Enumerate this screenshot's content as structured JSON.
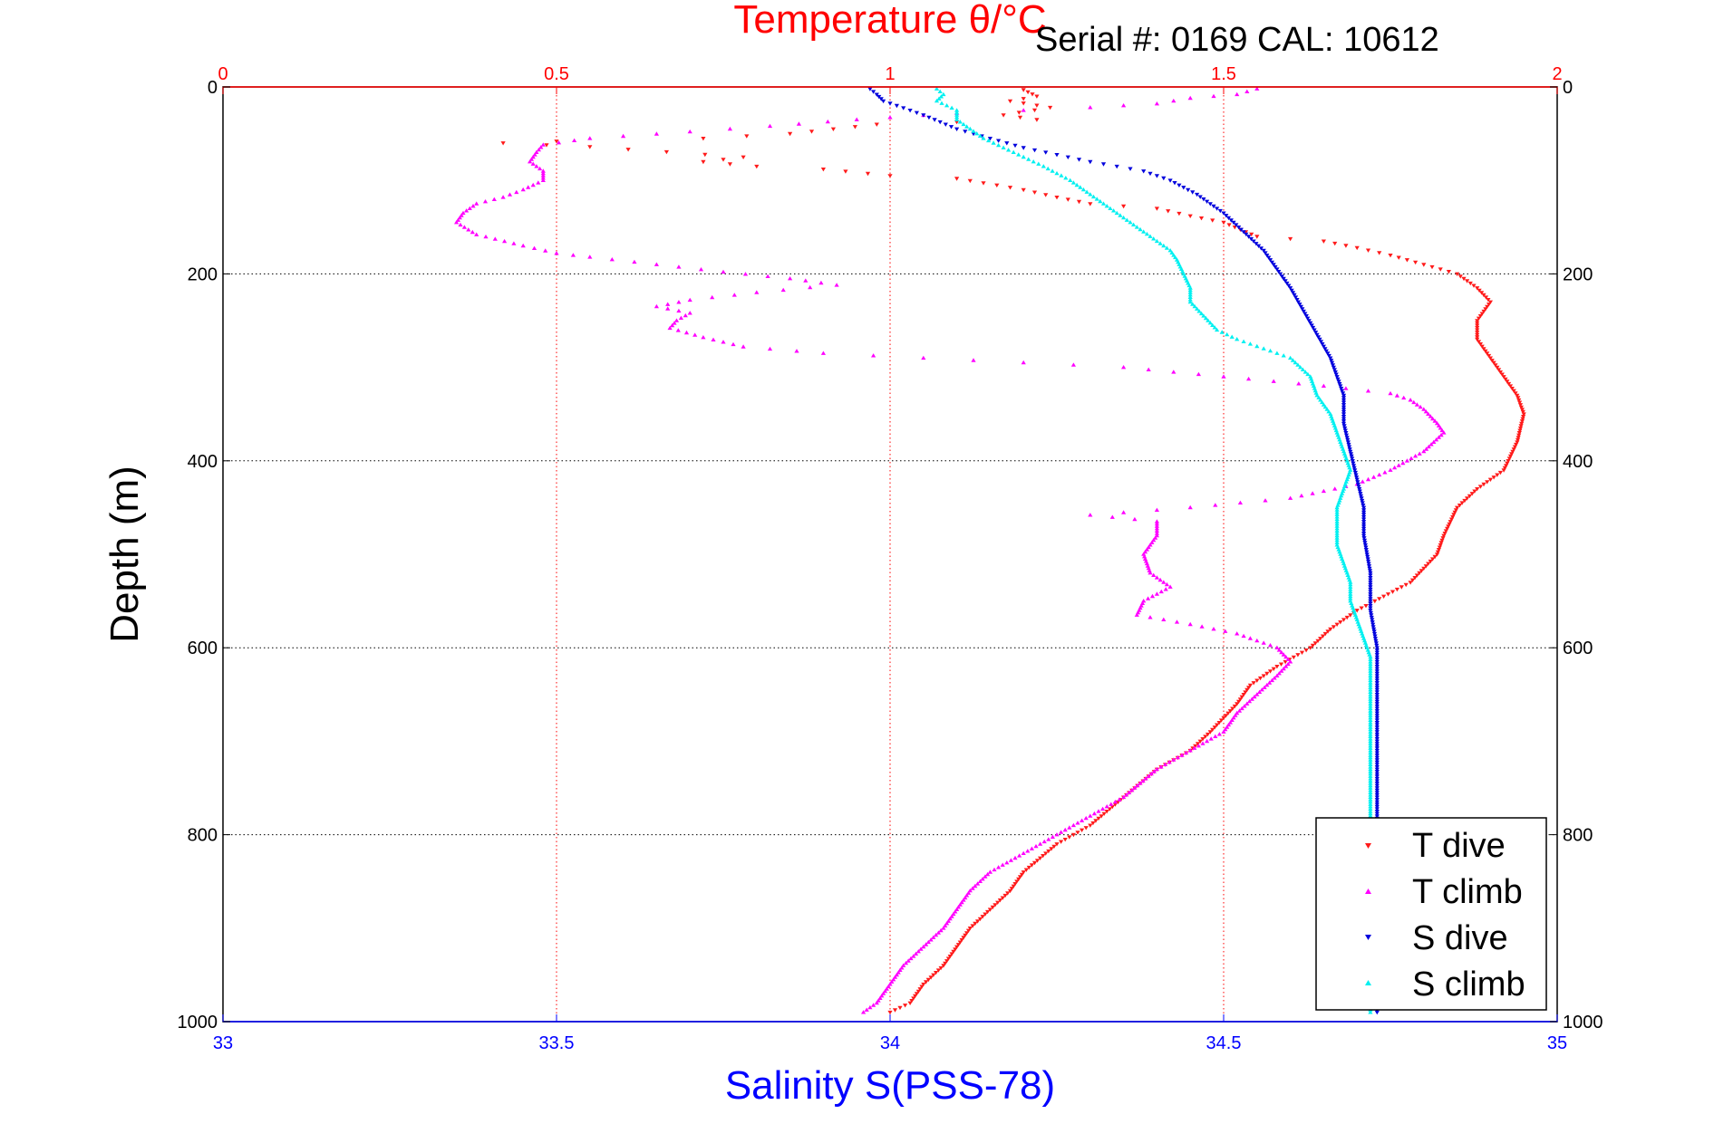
{
  "colors": {
    "temperature": "#ff0000",
    "salinity": "#0000ff",
    "t_dive": "#ff1a1a",
    "t_climb": "#ff00ff",
    "s_dive": "#0000dd",
    "s_climb": "#00f0f0",
    "grid_x": "#ff0000",
    "grid_y": "#000000"
  },
  "chart_data": {
    "type": "scatter",
    "title": "Temperature θ/°C",
    "subtitle": "Serial #: 0169 CAL: 10612",
    "xlabel": "Salinity S(PSS-78)",
    "x2label": "Temperature θ/°C",
    "ylabel": "Depth (m)",
    "xlim": [
      33,
      35
    ],
    "x2lim": [
      0,
      2
    ],
    "ylim": [
      0,
      1000
    ],
    "y_reversed": true,
    "grid": true,
    "legend_position": "bottom-right",
    "x_ticks": [
      "33",
      "33.5",
      "34",
      "34.5",
      "35"
    ],
    "x2_ticks": [
      "0",
      "0.5",
      "1",
      "1.5",
      "2"
    ],
    "y_ticks": [
      "0",
      "200",
      "400",
      "600",
      "800",
      "1000"
    ],
    "series": [
      {
        "name": "T dive",
        "axis": "temperature",
        "marker": "triangle-down",
        "points": [
          [
            1.2,
            3
          ],
          [
            1.22,
            10
          ],
          [
            1.18,
            15
          ],
          [
            1.24,
            22
          ],
          [
            1.17,
            30
          ],
          [
            1.22,
            35
          ],
          [
            0.98,
            40
          ],
          [
            0.85,
            50
          ],
          [
            0.72,
            55
          ],
          [
            0.5,
            58
          ],
          [
            0.42,
            60
          ],
          [
            0.55,
            64
          ],
          [
            0.78,
            75
          ],
          [
            0.72,
            80
          ],
          [
            0.8,
            85
          ],
          [
            0.9,
            88
          ],
          [
            1.0,
            95
          ],
          [
            1.1,
            98
          ],
          [
            1.16,
            105
          ],
          [
            1.2,
            110
          ],
          [
            1.25,
            118
          ],
          [
            1.3,
            125
          ],
          [
            1.4,
            130
          ],
          [
            1.45,
            138
          ],
          [
            1.5,
            145
          ],
          [
            1.55,
            160
          ],
          [
            1.65,
            165
          ],
          [
            1.7,
            172
          ],
          [
            1.75,
            180
          ],
          [
            1.8,
            190
          ],
          [
            1.85,
            200
          ],
          [
            1.88,
            215
          ],
          [
            1.9,
            230
          ],
          [
            1.88,
            250
          ],
          [
            1.88,
            270
          ],
          [
            1.9,
            290
          ],
          [
            1.92,
            310
          ],
          [
            1.94,
            330
          ],
          [
            1.95,
            350
          ],
          [
            1.94,
            380
          ],
          [
            1.92,
            410
          ],
          [
            1.88,
            430
          ],
          [
            1.85,
            450
          ],
          [
            1.83,
            480
          ],
          [
            1.82,
            500
          ],
          [
            1.78,
            530
          ],
          [
            1.7,
            560
          ],
          [
            1.66,
            580
          ],
          [
            1.63,
            600
          ],
          [
            1.58,
            620
          ],
          [
            1.54,
            640
          ],
          [
            1.52,
            660
          ],
          [
            1.48,
            690
          ],
          [
            1.45,
            710
          ],
          [
            1.4,
            730
          ],
          [
            1.35,
            760
          ],
          [
            1.3,
            790
          ],
          [
            1.25,
            810
          ],
          [
            1.2,
            840
          ],
          [
            1.18,
            860
          ],
          [
            1.15,
            880
          ],
          [
            1.12,
            900
          ],
          [
            1.1,
            920
          ],
          [
            1.08,
            940
          ],
          [
            1.05,
            960
          ],
          [
            1.03,
            980
          ],
          [
            1.0,
            990
          ]
        ]
      },
      {
        "name": "T climb",
        "axis": "temperature",
        "marker": "triangle-up",
        "points": [
          [
            1.55,
            2
          ],
          [
            1.52,
            8
          ],
          [
            1.45,
            12
          ],
          [
            1.4,
            18
          ],
          [
            1.3,
            22
          ],
          [
            1.1,
            28
          ],
          [
            0.95,
            35
          ],
          [
            0.82,
            42
          ],
          [
            0.7,
            48
          ],
          [
            0.55,
            55
          ],
          [
            0.48,
            62
          ],
          [
            0.47,
            70
          ],
          [
            0.46,
            80
          ],
          [
            0.48,
            90
          ],
          [
            0.48,
            100
          ],
          [
            0.45,
            110
          ],
          [
            0.42,
            118
          ],
          [
            0.38,
            125
          ],
          [
            0.36,
            135
          ],
          [
            0.35,
            145
          ],
          [
            0.38,
            158
          ],
          [
            0.45,
            170
          ],
          [
            0.5,
            178
          ],
          [
            0.55,
            182
          ],
          [
            0.65,
            190
          ],
          [
            0.75,
            198
          ],
          [
            0.85,
            205
          ],
          [
            0.92,
            212
          ],
          [
            0.8,
            220
          ],
          [
            0.7,
            228
          ],
          [
            0.65,
            235
          ],
          [
            0.7,
            242
          ],
          [
            0.68,
            250
          ],
          [
            0.67,
            258
          ],
          [
            0.72,
            268
          ],
          [
            0.78,
            278
          ],
          [
            0.9,
            285
          ],
          [
            1.05,
            290
          ],
          [
            1.2,
            295
          ],
          [
            1.35,
            300
          ],
          [
            1.5,
            310
          ],
          [
            1.65,
            320
          ],
          [
            1.75,
            328
          ],
          [
            1.78,
            335
          ],
          [
            1.8,
            345
          ],
          [
            1.82,
            360
          ],
          [
            1.83,
            370
          ],
          [
            1.8,
            390
          ],
          [
            1.75,
            410
          ],
          [
            1.7,
            425
          ],
          [
            1.6,
            440
          ],
          [
            1.45,
            450
          ],
          [
            1.3,
            458
          ],
          [
            1.4,
            465
          ],
          [
            1.4,
            480
          ],
          [
            1.38,
            500
          ],
          [
            1.39,
            520
          ],
          [
            1.42,
            535
          ],
          [
            1.38,
            550
          ],
          [
            1.37,
            565
          ],
          [
            1.45,
            575
          ],
          [
            1.52,
            585
          ],
          [
            1.58,
            600
          ],
          [
            1.6,
            615
          ],
          [
            1.58,
            630
          ],
          [
            1.55,
            650
          ],
          [
            1.52,
            670
          ],
          [
            1.5,
            690
          ],
          [
            1.45,
            710
          ],
          [
            1.4,
            730
          ],
          [
            1.35,
            760
          ],
          [
            1.3,
            780
          ],
          [
            1.25,
            800
          ],
          [
            1.2,
            820
          ],
          [
            1.15,
            840
          ],
          [
            1.12,
            860
          ],
          [
            1.1,
            880
          ],
          [
            1.08,
            900
          ],
          [
            1.05,
            920
          ],
          [
            1.02,
            940
          ],
          [
            1.0,
            960
          ],
          [
            0.98,
            980
          ],
          [
            0.96,
            990
          ]
        ]
      },
      {
        "name": "S dive",
        "axis": "salinity",
        "marker": "triangle-down",
        "points": [
          [
            33.97,
            2
          ],
          [
            33.98,
            8
          ],
          [
            33.99,
            15
          ],
          [
            34.05,
            30
          ],
          [
            34.1,
            45
          ],
          [
            34.15,
            55
          ],
          [
            34.2,
            65
          ],
          [
            34.3,
            80
          ],
          [
            34.38,
            90
          ],
          [
            34.42,
            100
          ],
          [
            34.46,
            115
          ],
          [
            34.5,
            135
          ],
          [
            34.53,
            155
          ],
          [
            34.56,
            175
          ],
          [
            34.58,
            195
          ],
          [
            34.6,
            215
          ],
          [
            34.62,
            240
          ],
          [
            34.64,
            265
          ],
          [
            34.66,
            290
          ],
          [
            34.67,
            310
          ],
          [
            34.68,
            330
          ],
          [
            34.68,
            360
          ],
          [
            34.69,
            390
          ],
          [
            34.7,
            420
          ],
          [
            34.71,
            450
          ],
          [
            34.71,
            480
          ],
          [
            34.72,
            520
          ],
          [
            34.72,
            560
          ],
          [
            34.73,
            600
          ],
          [
            34.73,
            640
          ],
          [
            34.73,
            700
          ],
          [
            34.73,
            760
          ],
          [
            34.73,
            820
          ],
          [
            34.73,
            880
          ],
          [
            34.73,
            940
          ],
          [
            34.73,
            990
          ]
        ]
      },
      {
        "name": "S climb",
        "axis": "salinity",
        "marker": "triangle-up",
        "points": [
          [
            34.07,
            2
          ],
          [
            34.08,
            8
          ],
          [
            34.07,
            15
          ],
          [
            34.1,
            25
          ],
          [
            34.1,
            35
          ],
          [
            34.12,
            45
          ],
          [
            34.14,
            55
          ],
          [
            34.17,
            65
          ],
          [
            34.2,
            75
          ],
          [
            34.23,
            85
          ],
          [
            34.27,
            100
          ],
          [
            34.3,
            115
          ],
          [
            34.33,
            130
          ],
          [
            34.36,
            145
          ],
          [
            34.39,
            160
          ],
          [
            34.42,
            175
          ],
          [
            34.43,
            185
          ],
          [
            34.44,
            200
          ],
          [
            34.45,
            215
          ],
          [
            34.45,
            230
          ],
          [
            34.47,
            245
          ],
          [
            34.49,
            260
          ],
          [
            34.52,
            270
          ],
          [
            34.56,
            280
          ],
          [
            34.6,
            290
          ],
          [
            34.63,
            310
          ],
          [
            34.64,
            330
          ],
          [
            34.66,
            350
          ],
          [
            34.67,
            370
          ],
          [
            34.68,
            390
          ],
          [
            34.69,
            410
          ],
          [
            34.68,
            430
          ],
          [
            34.67,
            450
          ],
          [
            34.67,
            470
          ],
          [
            34.67,
            490
          ],
          [
            34.68,
            510
          ],
          [
            34.69,
            530
          ],
          [
            34.69,
            550
          ],
          [
            34.7,
            570
          ],
          [
            34.71,
            590
          ],
          [
            34.72,
            610
          ],
          [
            34.72,
            640
          ],
          [
            34.72,
            700
          ],
          [
            34.72,
            760
          ],
          [
            34.72,
            820
          ],
          [
            34.72,
            880
          ],
          [
            34.72,
            940
          ],
          [
            34.72,
            990
          ]
        ]
      }
    ]
  }
}
